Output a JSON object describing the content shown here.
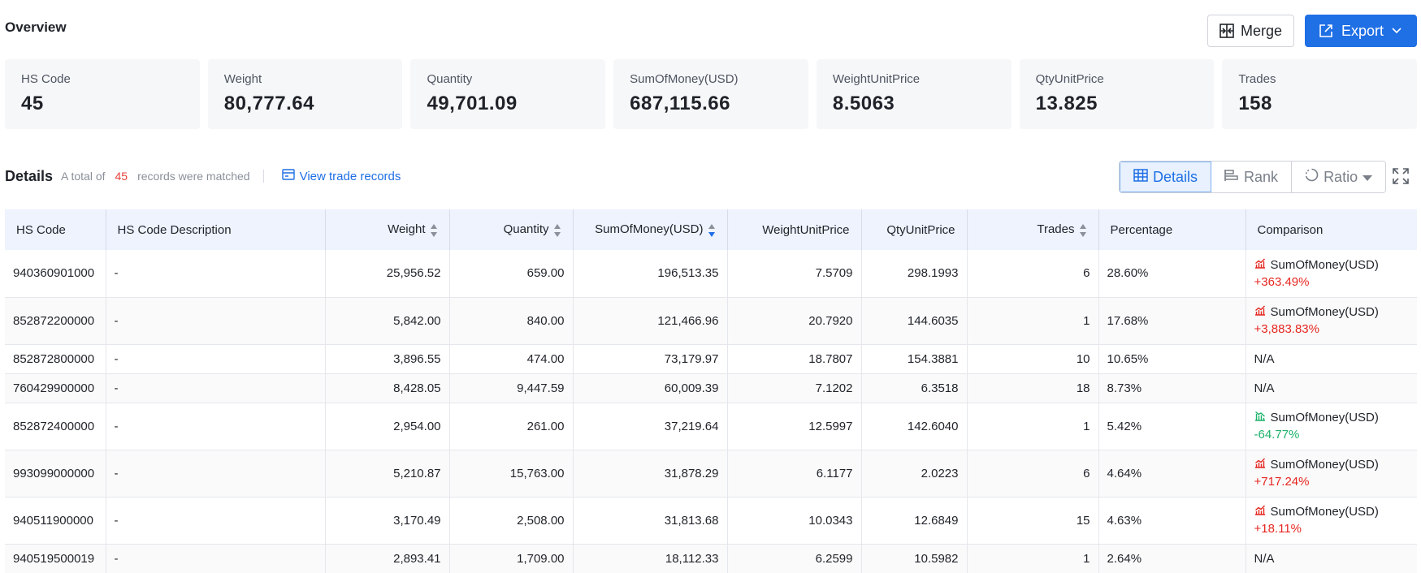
{
  "overview": {
    "title": "Overview",
    "merge_label": "Merge",
    "export_label": "Export",
    "cards": [
      {
        "label": "HS Code",
        "value": "45"
      },
      {
        "label": "Weight",
        "value": "80,777.64"
      },
      {
        "label": "Quantity",
        "value": "49,701.09"
      },
      {
        "label": "SumOfMoney(USD)",
        "value": "687,115.66"
      },
      {
        "label": "WeightUnitPrice",
        "value": "8.5063"
      },
      {
        "label": "QtyUnitPrice",
        "value": "13.825"
      },
      {
        "label": "Trades",
        "value": "158"
      }
    ]
  },
  "details": {
    "title": "Details",
    "note_prefix": "A total of",
    "count": "45",
    "note_suffix": "records were matched",
    "trade_link": "View trade records",
    "views": [
      "Details",
      "Rank",
      "Ratio"
    ],
    "active_view": "Details"
  },
  "table": {
    "headers": [
      "HS Code",
      "HS Code Description",
      "Weight",
      "Quantity",
      "SumOfMoney(USD)",
      "WeightUnitPrice",
      "QtyUnitPrice",
      "Trades",
      "Percentage",
      "Comparison"
    ],
    "rows": [
      {
        "hs": "940360901000",
        "desc": "-",
        "weight": "25,956.52",
        "qty": "659.00",
        "money": "196,513.35",
        "wup": "7.5709",
        "qup": "298.1993",
        "trades": "6",
        "pct": "28.60%",
        "cmp_label": "SumOfMoney(USD)",
        "cmp_value": "+363.49%",
        "cmp_trend": "up"
      },
      {
        "hs": "852872200000",
        "desc": "-",
        "weight": "5,842.00",
        "qty": "840.00",
        "money": "121,466.96",
        "wup": "20.7920",
        "qup": "144.6035",
        "trades": "1",
        "pct": "17.68%",
        "cmp_label": "SumOfMoney(USD)",
        "cmp_value": "+3,883.83%",
        "cmp_trend": "up"
      },
      {
        "hs": "852872800000",
        "desc": "-",
        "weight": "3,896.55",
        "qty": "474.00",
        "money": "73,179.97",
        "wup": "18.7807",
        "qup": "154.3881",
        "trades": "10",
        "pct": "10.65%",
        "cmp_na": "N/A"
      },
      {
        "hs": "760429900000",
        "desc": "-",
        "weight": "8,428.05",
        "qty": "9,447.59",
        "money": "60,009.39",
        "wup": "7.1202",
        "qup": "6.3518",
        "trades": "18",
        "pct": "8.73%",
        "cmp_na": "N/A"
      },
      {
        "hs": "852872400000",
        "desc": "-",
        "weight": "2,954.00",
        "qty": "261.00",
        "money": "37,219.64",
        "wup": "12.5997",
        "qup": "142.6040",
        "trades": "1",
        "pct": "5.42%",
        "cmp_label": "SumOfMoney(USD)",
        "cmp_value": "-64.77%",
        "cmp_trend": "down"
      },
      {
        "hs": "993099000000",
        "desc": "-",
        "weight": "5,210.87",
        "qty": "15,763.00",
        "money": "31,878.29",
        "wup": "6.1177",
        "qup": "2.0223",
        "trades": "6",
        "pct": "4.64%",
        "cmp_label": "SumOfMoney(USD)",
        "cmp_value": "+717.24%",
        "cmp_trend": "up"
      },
      {
        "hs": "940511900000",
        "desc": "-",
        "weight": "3,170.49",
        "qty": "2,508.00",
        "money": "31,813.68",
        "wup": "10.0343",
        "qup": "12.6849",
        "trades": "15",
        "pct": "4.63%",
        "cmp_label": "SumOfMoney(USD)",
        "cmp_value": "+18.11%",
        "cmp_trend": "up"
      },
      {
        "hs": "940519500019",
        "desc": "-",
        "weight": "2,893.41",
        "qty": "1,709.00",
        "money": "18,112.33",
        "wup": "6.2599",
        "qup": "10.5982",
        "trades": "1",
        "pct": "2.64%",
        "cmp_na": "N/A"
      }
    ]
  },
  "colors": {
    "accent": "#1f6fe5",
    "up": "#e5261f",
    "down": "#1db26b",
    "header_bg": "#eef3fe"
  }
}
